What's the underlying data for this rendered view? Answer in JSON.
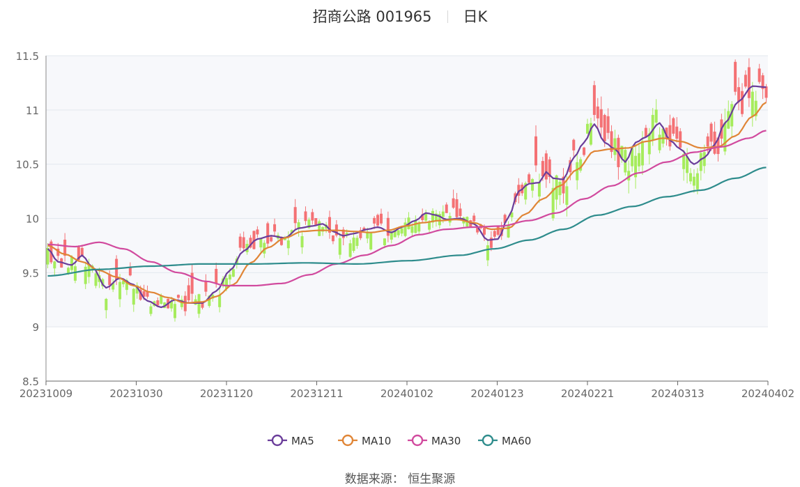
{
  "header": {
    "title": "招商公路 001965",
    "period": "日K"
  },
  "footer": {
    "source": "数据来源： 恒生聚源"
  },
  "chart_data": {
    "type": "candlestick",
    "ylim": [
      8.5,
      11.5
    ],
    "yticks": [
      "8.5",
      "9",
      "9.5",
      "10",
      "10.5",
      "11",
      "11.5"
    ],
    "xticks": [
      "20231009",
      "20231030",
      "20231120",
      "20231211",
      "20240102",
      "20240123",
      "20240221",
      "20240313",
      "20240402"
    ],
    "grid": true,
    "legend_position": "bottom-center",
    "colors": {
      "up": "#f47174",
      "down": "#a6ec5c",
      "grid": "#e3e8ee",
      "plot_bg": "#f7f8fb"
    },
    "series": [
      {
        "name": "MA5",
        "color": "#6a3d9a",
        "keypoints": [
          [
            0,
            9.72
          ],
          [
            3,
            9.6
          ],
          [
            7,
            9.57
          ],
          [
            10,
            9.66
          ],
          [
            13,
            9.55
          ],
          [
            17,
            9.36
          ],
          [
            21,
            9.45
          ],
          [
            25,
            9.39
          ],
          [
            29,
            9.24
          ],
          [
            33,
            9.18
          ],
          [
            37,
            9.25
          ],
          [
            41,
            9.22
          ],
          [
            45,
            9.22
          ],
          [
            49,
            9.33
          ],
          [
            53,
            9.52
          ],
          [
            57,
            9.7
          ],
          [
            61,
            9.81
          ],
          [
            65,
            9.84
          ],
          [
            69,
            9.82
          ],
          [
            73,
            9.91
          ],
          [
            77,
            9.93
          ],
          [
            80,
            9.95
          ],
          [
            83,
            9.88
          ],
          [
            86,
            9.84
          ],
          [
            89,
            9.86
          ],
          [
            93,
            9.9
          ],
          [
            96,
            9.92
          ],
          [
            100,
            9.87
          ],
          [
            103,
            9.92
          ],
          [
            107,
            9.98
          ],
          [
            110,
            10.05
          ],
          [
            113,
            10.03
          ],
          [
            116,
            9.99
          ],
          [
            120,
            10.0
          ],
          [
            124,
            9.95
          ],
          [
            128,
            9.8
          ],
          [
            131,
            9.81
          ],
          [
            134,
            10.01
          ],
          [
            137,
            10.25
          ],
          [
            140,
            10.32
          ],
          [
            143,
            10.33
          ],
          [
            145,
            10.43
          ],
          [
            147,
            10.37
          ],
          [
            150,
            10.36
          ],
          [
            153,
            10.56
          ],
          [
            156,
            10.7
          ],
          [
            159,
            10.87
          ],
          [
            162,
            10.7
          ],
          [
            165,
            10.64
          ],
          [
            168,
            10.52
          ],
          [
            171,
            10.7
          ],
          [
            174,
            10.75
          ],
          [
            178,
            10.88
          ],
          [
            181,
            10.72
          ],
          [
            184,
            10.64
          ],
          [
            188,
            10.5
          ],
          [
            191,
            10.56
          ],
          [
            194,
            10.68
          ],
          [
            197,
            10.88
          ],
          [
            201,
            11.08
          ],
          [
            205,
            11.22
          ],
          [
            209,
            11.21
          ]
        ]
      },
      {
        "name": "MA10",
        "color": "#e08536",
        "keypoints": [
          [
            0,
            9.75
          ],
          [
            5,
            9.67
          ],
          [
            10,
            9.6
          ],
          [
            15,
            9.52
          ],
          [
            20,
            9.46
          ],
          [
            25,
            9.38
          ],
          [
            30,
            9.32
          ],
          [
            35,
            9.27
          ],
          [
            40,
            9.22
          ],
          [
            45,
            9.23
          ],
          [
            49,
            9.28
          ],
          [
            54,
            9.39
          ],
          [
            59,
            9.59
          ],
          [
            64,
            9.73
          ],
          [
            69,
            9.82
          ],
          [
            74,
            9.88
          ],
          [
            79,
            9.89
          ],
          [
            84,
            9.89
          ],
          [
            89,
            9.88
          ],
          [
            94,
            9.87
          ],
          [
            99,
            9.89
          ],
          [
            104,
            9.93
          ],
          [
            109,
            9.96
          ],
          [
            114,
            9.98
          ],
          [
            119,
            9.99
          ],
          [
            124,
            9.96
          ],
          [
            129,
            9.9
          ],
          [
            134,
            9.91
          ],
          [
            139,
            10.04
          ],
          [
            144,
            10.18
          ],
          [
            149,
            10.3
          ],
          [
            154,
            10.45
          ],
          [
            159,
            10.62
          ],
          [
            164,
            10.64
          ],
          [
            169,
            10.65
          ],
          [
            174,
            10.71
          ],
          [
            179,
            10.74
          ],
          [
            184,
            10.71
          ],
          [
            190,
            10.65
          ],
          [
            195,
            10.66
          ],
          [
            200,
            10.76
          ],
          [
            205,
            10.94
          ],
          [
            209,
            11.07
          ]
        ]
      },
      {
        "name": "MA30",
        "color": "#d14a9e",
        "keypoints": [
          [
            0,
            9.76
          ],
          [
            8,
            9.74
          ],
          [
            15,
            9.78
          ],
          [
            22,
            9.72
          ],
          [
            30,
            9.6
          ],
          [
            38,
            9.5
          ],
          [
            46,
            9.42
          ],
          [
            52,
            9.38
          ],
          [
            60,
            9.38
          ],
          [
            68,
            9.4
          ],
          [
            76,
            9.48
          ],
          [
            84,
            9.58
          ],
          [
            92,
            9.66
          ],
          [
            100,
            9.75
          ],
          [
            108,
            9.85
          ],
          [
            116,
            9.9
          ],
          [
            124,
            9.92
          ],
          [
            132,
            9.93
          ],
          [
            140,
            9.98
          ],
          [
            148,
            10.05
          ],
          [
            156,
            10.18
          ],
          [
            164,
            10.3
          ],
          [
            172,
            10.42
          ],
          [
            180,
            10.52
          ],
          [
            188,
            10.61
          ],
          [
            196,
            10.66
          ],
          [
            204,
            10.74
          ],
          [
            209,
            10.81
          ]
        ]
      },
      {
        "name": "MA60",
        "color": "#2e8c8c",
        "keypoints": [
          [
            0,
            9.47
          ],
          [
            15,
            9.53
          ],
          [
            30,
            9.56
          ],
          [
            45,
            9.58
          ],
          [
            60,
            9.58
          ],
          [
            75,
            9.59
          ],
          [
            90,
            9.58
          ],
          [
            105,
            9.61
          ],
          [
            120,
            9.66
          ],
          [
            130,
            9.72
          ],
          [
            140,
            9.8
          ],
          [
            150,
            9.9
          ],
          [
            160,
            10.03
          ],
          [
            170,
            10.11
          ],
          [
            180,
            10.2
          ],
          [
            190,
            10.26
          ],
          [
            200,
            10.37
          ],
          [
            209,
            10.47
          ]
        ]
      }
    ]
  }
}
